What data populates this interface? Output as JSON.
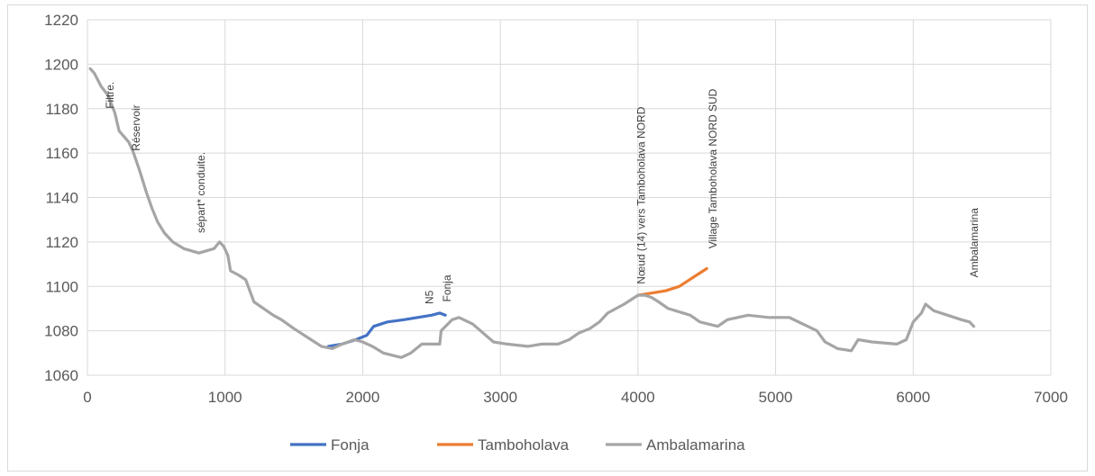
{
  "chart_data": {
    "type": "line",
    "title": "",
    "xlabel": "",
    "ylabel": "",
    "xlim": [
      0,
      7000
    ],
    "ylim": [
      1060,
      1220
    ],
    "x_ticks": [
      0,
      1000,
      2000,
      3000,
      4000,
      5000,
      6000,
      7000
    ],
    "y_ticks": [
      1060,
      1080,
      1100,
      1120,
      1140,
      1160,
      1180,
      1200,
      1220
    ],
    "x_tick_labels": [
      "0",
      "1000",
      "2000",
      "3000",
      "4000",
      "5000",
      "6000",
      "7000"
    ],
    "y_tick_labels": [
      "1060",
      "1080",
      "1100",
      "1120",
      "1140",
      "1160",
      "1180",
      "1200",
      "1220"
    ],
    "grid": true,
    "legend_position": "bottom",
    "series": [
      {
        "name": "Fonja",
        "color": "#4472C4",
        "points": [
          [
            1750,
            1073
          ],
          [
            1850,
            1074
          ],
          [
            1950,
            1076
          ],
          [
            2030,
            1078
          ],
          [
            2080,
            1082
          ],
          [
            2180,
            1084
          ],
          [
            2300,
            1085
          ],
          [
            2400,
            1086
          ],
          [
            2500,
            1087
          ],
          [
            2560,
            1088
          ],
          [
            2600,
            1087
          ]
        ]
      },
      {
        "name": "Tamboholava",
        "color": "#ED7D31",
        "points": [
          [
            4000,
            1096
          ],
          [
            4100,
            1097
          ],
          [
            4200,
            1098
          ],
          [
            4300,
            1100
          ],
          [
            4400,
            1104
          ],
          [
            4500,
            1108
          ]
        ]
      },
      {
        "name": "Ambalamarina",
        "color": "#A5A5A5",
        "points": [
          [
            20,
            1198
          ],
          [
            50,
            1196
          ],
          [
            100,
            1190
          ],
          [
            150,
            1186
          ],
          [
            200,
            1178
          ],
          [
            230,
            1170
          ],
          [
            300,
            1165
          ],
          [
            330,
            1161
          ],
          [
            380,
            1152
          ],
          [
            430,
            1142
          ],
          [
            470,
            1135
          ],
          [
            510,
            1129
          ],
          [
            560,
            1124
          ],
          [
            620,
            1120
          ],
          [
            700,
            1117
          ],
          [
            810,
            1115
          ],
          [
            920,
            1117
          ],
          [
            960,
            1120
          ],
          [
            990,
            1118
          ],
          [
            1020,
            1114
          ],
          [
            1040,
            1107
          ],
          [
            1100,
            1105
          ],
          [
            1150,
            1103
          ],
          [
            1210,
            1093
          ],
          [
            1280,
            1090
          ],
          [
            1350,
            1087
          ],
          [
            1410,
            1085
          ],
          [
            1500,
            1081
          ],
          [
            1600,
            1077
          ],
          [
            1700,
            1073
          ],
          [
            1780,
            1072
          ],
          [
            1850,
            1074
          ],
          [
            1940,
            1076
          ],
          [
            2000,
            1075
          ],
          [
            2070,
            1073
          ],
          [
            2150,
            1070
          ],
          [
            2280,
            1068
          ],
          [
            2350,
            1070
          ],
          [
            2430,
            1074
          ],
          [
            2500,
            1074
          ],
          [
            2560,
            1074
          ],
          [
            2570,
            1080
          ],
          [
            2650,
            1085
          ],
          [
            2700,
            1086
          ],
          [
            2800,
            1083
          ],
          [
            2950,
            1075
          ],
          [
            3050,
            1074
          ],
          [
            3200,
            1073
          ],
          [
            3300,
            1074
          ],
          [
            3420,
            1074
          ],
          [
            3500,
            1076
          ],
          [
            3570,
            1079
          ],
          [
            3650,
            1081
          ],
          [
            3720,
            1084
          ],
          [
            3780,
            1088
          ],
          [
            3900,
            1092
          ],
          [
            4000,
            1096
          ],
          [
            4050,
            1096
          ],
          [
            4100,
            1095
          ],
          [
            4150,
            1093
          ],
          [
            4220,
            1090
          ],
          [
            4380,
            1087
          ],
          [
            4450,
            1084
          ],
          [
            4580,
            1082
          ],
          [
            4650,
            1085
          ],
          [
            4800,
            1087
          ],
          [
            4950,
            1086
          ],
          [
            5100,
            1086
          ],
          [
            5200,
            1083
          ],
          [
            5300,
            1080
          ],
          [
            5360,
            1075
          ],
          [
            5450,
            1072
          ],
          [
            5550,
            1071
          ],
          [
            5600,
            1076
          ],
          [
            5700,
            1075
          ],
          [
            5880,
            1074
          ],
          [
            5950,
            1076
          ],
          [
            6000,
            1084
          ],
          [
            6060,
            1088
          ],
          [
            6090,
            1092
          ],
          [
            6150,
            1089
          ],
          [
            6250,
            1087
          ],
          [
            6350,
            1085
          ],
          [
            6410,
            1084
          ],
          [
            6440,
            1082
          ]
        ]
      }
    ],
    "annotations": [
      {
        "text": "Filtre.",
        "x": 190,
        "y": 1180
      },
      {
        "text": "Réservoir",
        "x": 380,
        "y": 1161
      },
      {
        "text": "sépart* conduite.",
        "x": 850,
        "y": 1124
      },
      {
        "text": "N5",
        "x": 2510,
        "y": 1092
      },
      {
        "text": "Fonja",
        "x": 2640,
        "y": 1093
      },
      {
        "text": "Nœud (14) vers Tamboholava NORD",
        "x": 4050,
        "y": 1101
      },
      {
        "text": "Village Tamboholava NORD SUD",
        "x": 4570,
        "y": 1117
      },
      {
        "text": "Ambalamarina",
        "x": 6470,
        "y": 1104
      }
    ]
  }
}
